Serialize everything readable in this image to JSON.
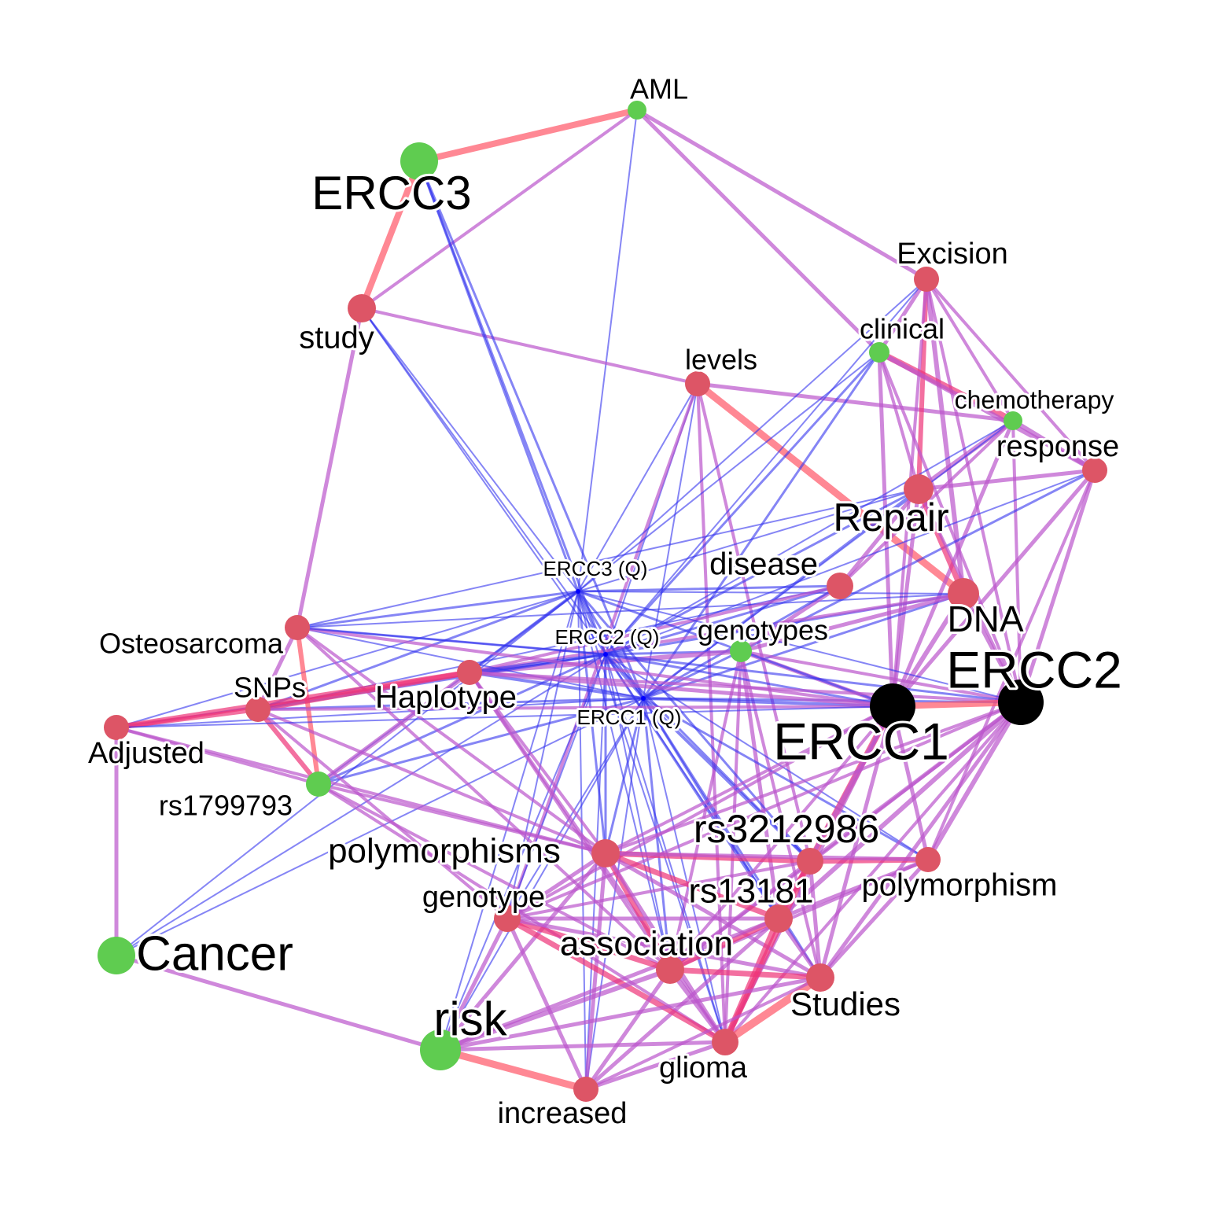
{
  "network": {
    "colors": {
      "term": "#dd5566",
      "query": "#0000ff",
      "green": "#5fcc50",
      "black": "#000000",
      "edge_query": "#3333ee",
      "edge_term": "#bb55cc",
      "edge_strong": "#ee3377",
      "edge_alt": "#ff5566"
    },
    "nodes": [
      {
        "id": "AML",
        "label": "AML",
        "kind": "green"
      },
      {
        "id": "ERCC3",
        "label": "ERCC3",
        "kind": "green"
      },
      {
        "id": "study",
        "label": "study",
        "kind": "term"
      },
      {
        "id": "Excision",
        "label": "Excision",
        "kind": "term"
      },
      {
        "id": "clinical",
        "label": "clinical",
        "kind": "green"
      },
      {
        "id": "levels",
        "label": "levels",
        "kind": "term"
      },
      {
        "id": "chemotherapy",
        "label": "chemotherapy",
        "kind": "green"
      },
      {
        "id": "response",
        "label": "response",
        "kind": "term"
      },
      {
        "id": "Repair",
        "label": "Repair",
        "kind": "term"
      },
      {
        "id": "ERCC3Q",
        "label": "ERCC3 (Q)",
        "kind": "query"
      },
      {
        "id": "disease",
        "label": "disease",
        "kind": "term"
      },
      {
        "id": "DNA",
        "label": "DNA",
        "kind": "term"
      },
      {
        "id": "ERCC2Q",
        "label": "ERCC2 (Q)",
        "kind": "query"
      },
      {
        "id": "genotypes",
        "label": "genotypes",
        "kind": "green"
      },
      {
        "id": "Osteosarcoma",
        "label": "Osteosarcoma",
        "kind": "term"
      },
      {
        "id": "ERCC2",
        "label": "ERCC2",
        "kind": "black"
      },
      {
        "id": "SNPs",
        "label": "SNPs",
        "kind": "term"
      },
      {
        "id": "Haplotype",
        "label": "Haplotype",
        "kind": "term"
      },
      {
        "id": "ERCC1Q",
        "label": "ERCC1 (Q)",
        "kind": "query"
      },
      {
        "id": "ERCC1",
        "label": "ERCC1",
        "kind": "black"
      },
      {
        "id": "Adjusted",
        "label": "Adjusted",
        "kind": "term"
      },
      {
        "id": "rs1799793",
        "label": "rs1799793",
        "kind": "green"
      },
      {
        "id": "rs3212986",
        "label": "rs3212986",
        "kind": "term"
      },
      {
        "id": "polymorphisms",
        "label": "polymorphisms",
        "kind": "term"
      },
      {
        "id": "polymorphism",
        "label": "polymorphism",
        "kind": "term"
      },
      {
        "id": "rs13181",
        "label": "rs13181",
        "kind": "term"
      },
      {
        "id": "genotype",
        "label": "genotype",
        "kind": "term"
      },
      {
        "id": "association",
        "label": "association",
        "kind": "term"
      },
      {
        "id": "Cancer",
        "label": "Cancer",
        "kind": "green"
      },
      {
        "id": "Studies",
        "label": "Studies",
        "kind": "term"
      },
      {
        "id": "risk",
        "label": "risk",
        "kind": "green"
      },
      {
        "id": "glioma",
        "label": "glioma",
        "kind": "term"
      },
      {
        "id": "increased",
        "label": "increased",
        "kind": "term"
      }
    ]
  }
}
